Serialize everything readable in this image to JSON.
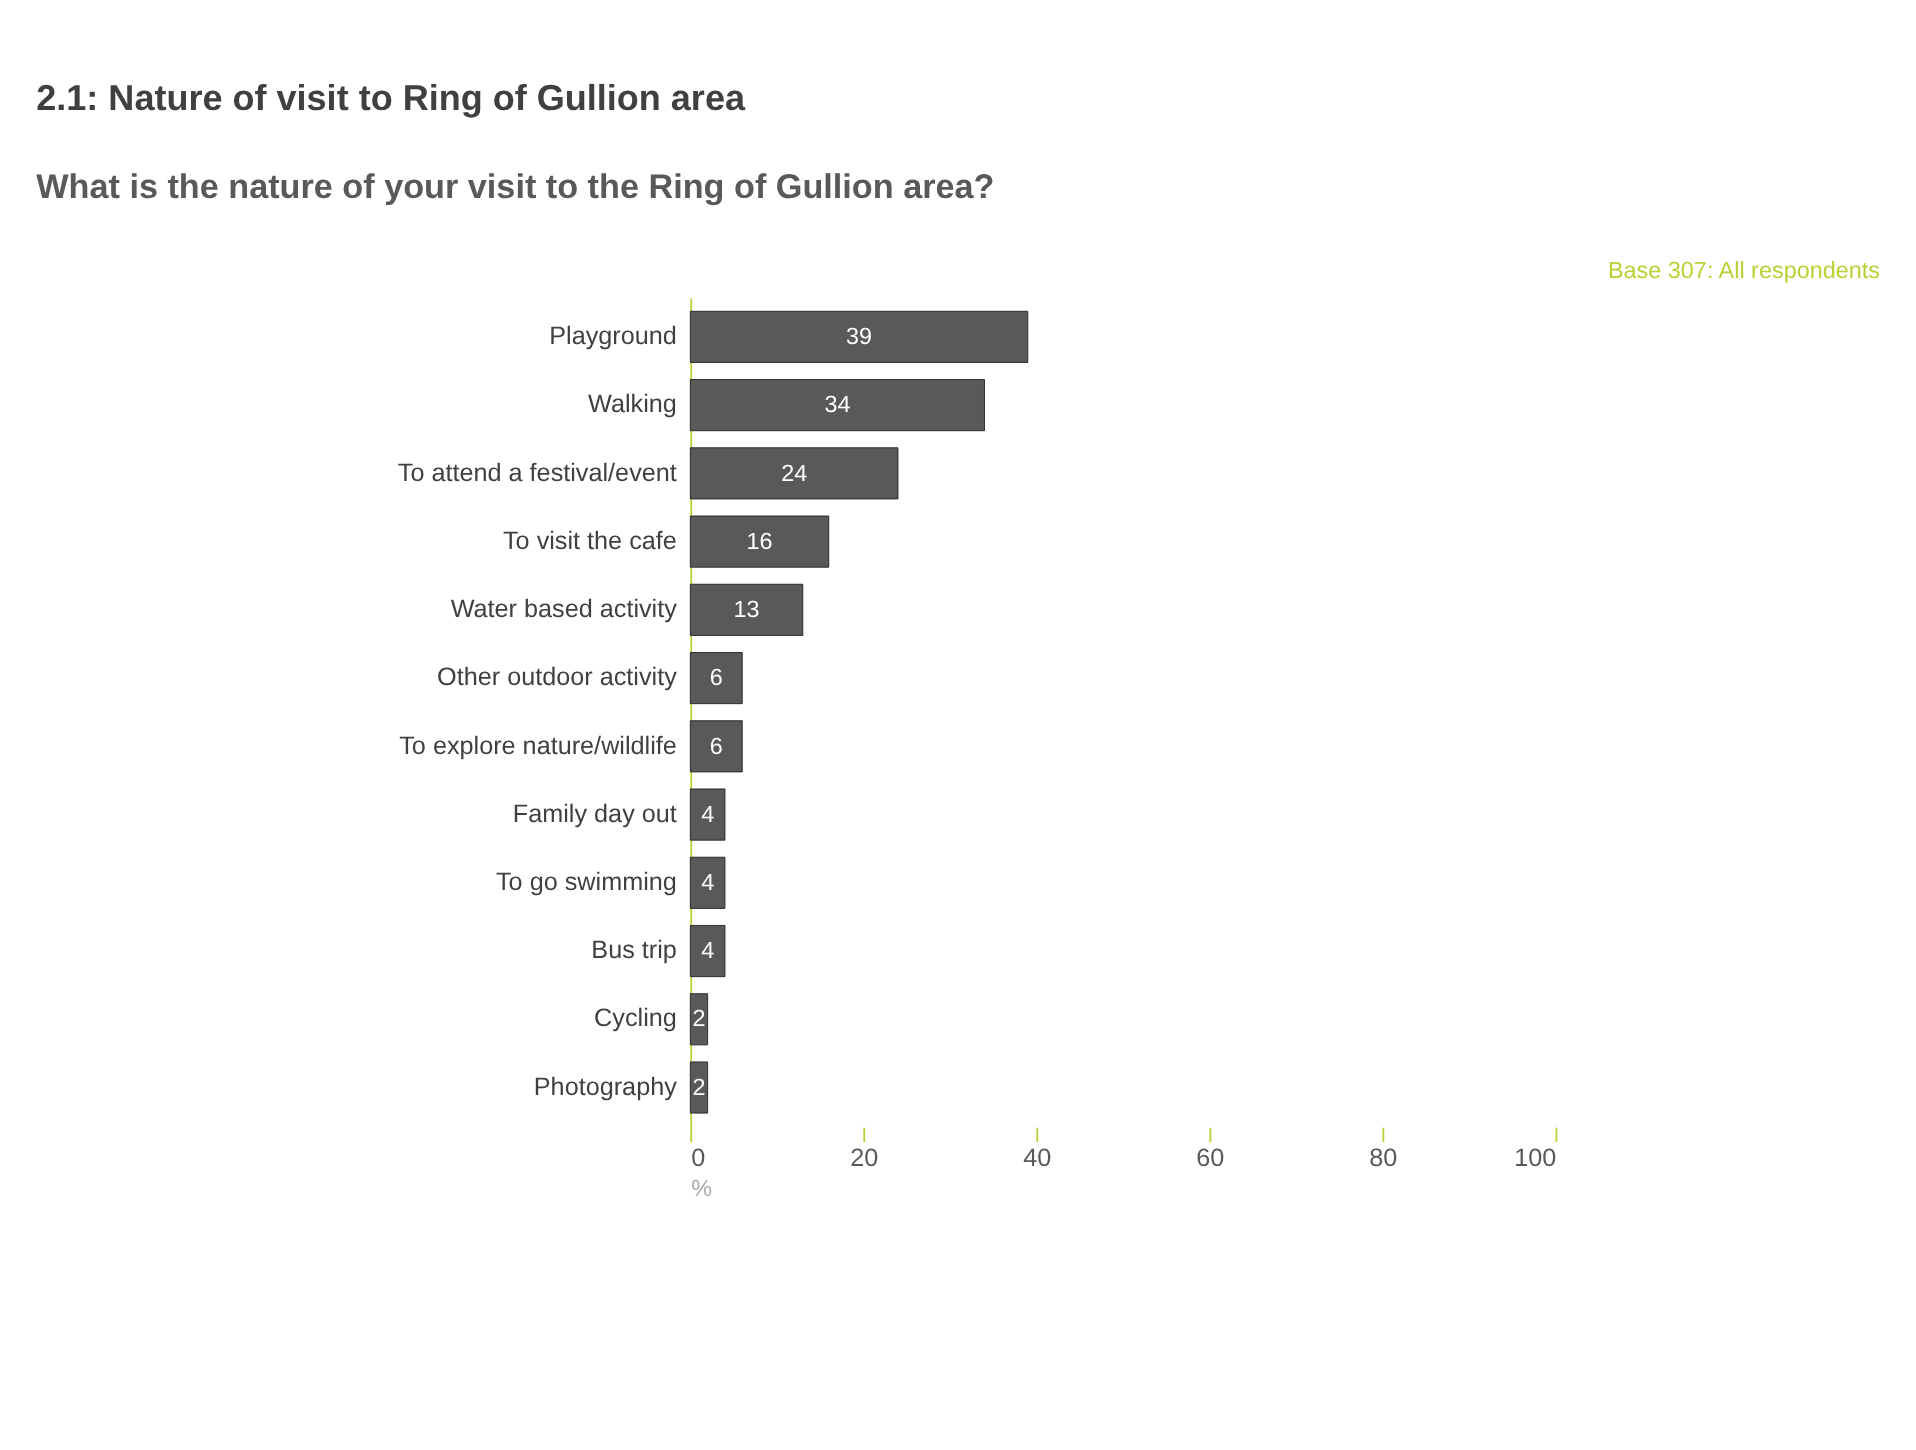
{
  "chart_data": {
    "type": "bar",
    "orientation": "horizontal",
    "title": "2.1: Nature of visit to Ring of Gullion area",
    "subtitle": "What is the nature of your visit to the Ring of Gullion area?",
    "xlabel": "%",
    "annotations": [
      "Base 307: All respondents"
    ],
    "categories": [
      "Playground",
      "Walking",
      "To attend a festival/event",
      "To visit the cafe",
      "Water based activity",
      "Other outdoor activity",
      "To explore nature/wildlife",
      "Family day out",
      "To go swimming",
      "Bus trip",
      "Cycling",
      "Photography"
    ],
    "values": [
      39,
      34,
      24,
      16,
      13,
      6,
      6,
      4,
      4,
      4,
      2,
      2
    ],
    "color": "#595959",
    "xlim": [
      0,
      100
    ],
    "xticks": [
      0,
      20,
      40,
      60,
      80,
      100
    ],
    "data_labels": true,
    "grid": false
  }
}
